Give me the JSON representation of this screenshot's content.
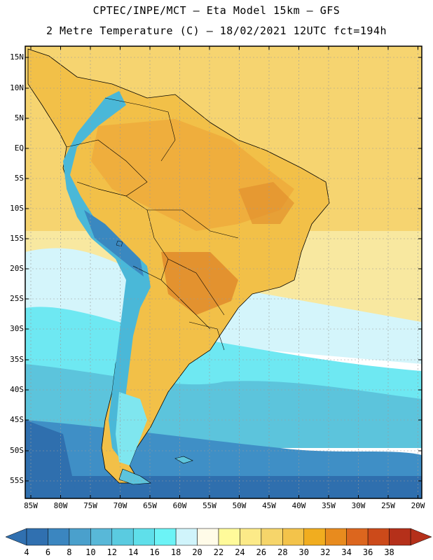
{
  "header": {
    "line1": "CPTEC/INPE/MCT –  Eta Model 15km – GFS",
    "line2": "2 Metre Temperature (C) – 18/02/2021 12UTC fct=194h"
  },
  "axes": {
    "lat_labels": [
      "15N",
      "10N",
      "5N",
      "EQ",
      "5S",
      "10S",
      "15S",
      "20S",
      "25S",
      "30S",
      "35S",
      "40S",
      "45S",
      "50S",
      "55S"
    ],
    "lon_labels": [
      "85W",
      "80W",
      "75W",
      "70W",
      "65W",
      "60W",
      "55W",
      "50W",
      "45W",
      "40W",
      "35W",
      "30W",
      "25W",
      "20W"
    ]
  },
  "colorbar": {
    "labels": [
      "4",
      "6",
      "8",
      "10",
      "12",
      "14",
      "16",
      "18",
      "20",
      "22",
      "24",
      "26",
      "28",
      "30",
      "32",
      "34",
      "36",
      "38"
    ],
    "colors": [
      "#3070b0",
      "#3b86c0",
      "#4aa0cc",
      "#58b8d8",
      "#5acbe0",
      "#5fdfea",
      "#6cf3f6",
      "#d0f4fb",
      "#fffbe8",
      "#fffa9a",
      "#fcea88",
      "#f6d56a",
      "#f3c34a",
      "#f1ad1f",
      "#e88b1e",
      "#dc661e",
      "#cc4a1a",
      "#b5301a"
    ]
  },
  "map": {
    "colors": {
      "deep_ocean": "#2f6fae",
      "cold_ocean": "#3f8fc6",
      "cool_ocean": "#5cc4dc",
      "mid_ocean": "#6ee8f2",
      "light_ocean": "#d4f5fb",
      "warm_ocean": "#f8e8a0",
      "tropical_ocean": "#f6d470",
      "land_base": "#f2c048",
      "land_hot": "#eea83a",
      "land_very_hot": "#e08a2c",
      "andes": "#4ab8d8",
      "andes_cold": "#3a88c0",
      "patagonia": "#7fe6ef",
      "border": "#000000"
    }
  }
}
